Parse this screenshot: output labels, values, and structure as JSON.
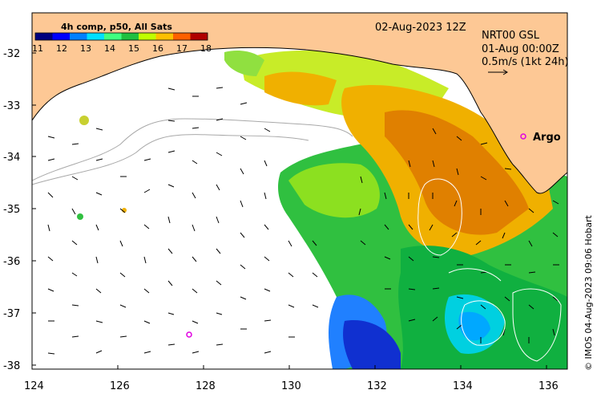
{
  "colorbar": {
    "title": "4h comp, p50, All Sats",
    "labels": [
      "11",
      "12",
      "13",
      "14",
      "15",
      "16",
      "17",
      "18"
    ],
    "colors": [
      "#00007f",
      "#0000ff",
      "#0080ff",
      "#00e0ff",
      "#40ff80",
      "#20c040",
      "#c0ff00",
      "#ffc000",
      "#ff6000",
      "#b00000"
    ]
  },
  "header": {
    "date": "02-Aug-2023 12Z",
    "product": "NRT00 GSL",
    "valid_time": "01-Aug 00:00Z",
    "scale_label": "0.5m/s (1kt 24h)"
  },
  "argo": {
    "label": "Argo",
    "color": "#e000e0"
  },
  "credit": "© IMOS 04-Aug-2023 09:06 Hobart",
  "axes": {
    "x_ticks": [
      "124",
      "126",
      "128",
      "130",
      "132",
      "134",
      "136"
    ],
    "y_ticks": [
      "-32",
      "-33",
      "-34",
      "-35",
      "-36",
      "-37",
      "-38"
    ]
  },
  "colors": {
    "land": "#fdc895",
    "ocean": "#ffffff",
    "arrow": "#000000",
    "bathymetry": "#a8a8a8"
  }
}
